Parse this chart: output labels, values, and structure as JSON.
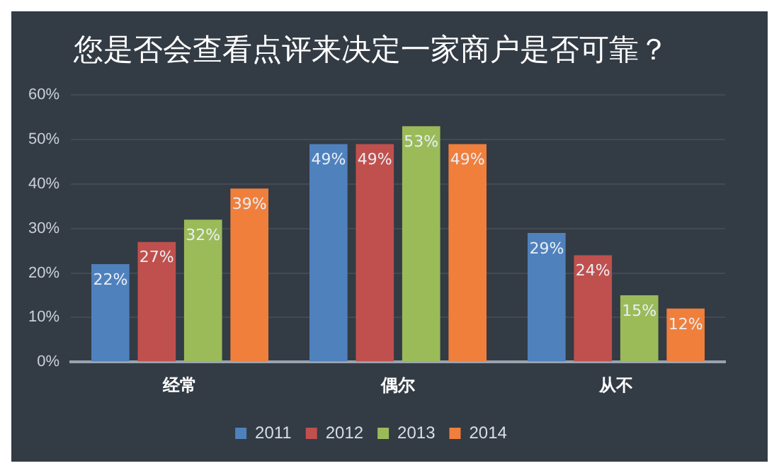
{
  "chart_data": {
    "type": "bar",
    "title": "您是否会查看点评来决定一家商户是否可靠？",
    "categories": [
      "经常",
      "偶尔",
      "从不"
    ],
    "series": [
      {
        "name": "2011",
        "color": "#4f81bd",
        "values": [
          22,
          49,
          29
        ],
        "value_labels": [
          "22%",
          "49%",
          "29%"
        ]
      },
      {
        "name": "2012",
        "color": "#c0504d",
        "values": [
          27,
          49,
          24
        ],
        "value_labels": [
          "27%",
          "49%",
          "24%"
        ]
      },
      {
        "name": "2013",
        "color": "#9bbb59",
        "values": [
          32,
          53,
          15
        ],
        "value_labels": [
          "32%",
          "53%",
          "15%"
        ]
      },
      {
        "name": "2014",
        "color": "#f07f3c",
        "values": [
          39,
          49,
          12
        ],
        "value_labels": [
          "39%",
          "49%",
          "12%"
        ]
      }
    ],
    "ylim": [
      0,
      60
    ],
    "yticks": [
      {
        "value": 0,
        "label": "0%"
      },
      {
        "value": 10,
        "label": "10%"
      },
      {
        "value": 20,
        "label": "20%"
      },
      {
        "value": 30,
        "label": "30%"
      },
      {
        "value": 40,
        "label": "40%"
      },
      {
        "value": 50,
        "label": "50%"
      },
      {
        "value": 60,
        "label": "60%"
      }
    ],
    "grid": "y",
    "legend": "bottom"
  }
}
